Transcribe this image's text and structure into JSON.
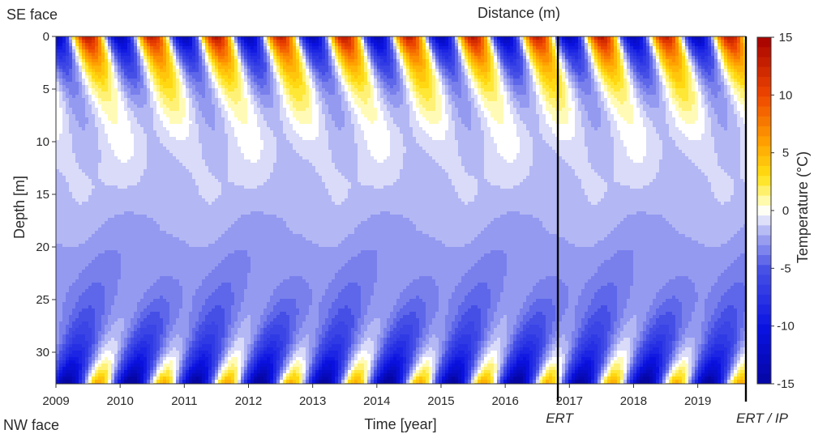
{
  "chart_data": {
    "type": "heatmap",
    "top_label": "SE face",
    "bottom_label": "NW face",
    "top_axis_title": "Distance (m)",
    "xlabel": "Time [year]",
    "ylabel": "Depth [m]",
    "colorbar_label": "Temperature (°C)",
    "x_ticks": [
      "2009",
      "2010",
      "2011",
      "2012",
      "2013",
      "2014",
      "2015",
      "2016",
      "2017",
      "2018",
      "2019"
    ],
    "xlim": [
      2009,
      2019.75
    ],
    "y_ticks": [
      0,
      5,
      10,
      15,
      20,
      25,
      30
    ],
    "ylim": [
      0,
      33
    ],
    "y_reversed": true,
    "colorbar_ticks": [
      15,
      10,
      5,
      0,
      -5,
      -10,
      -15
    ],
    "colorbar_range": [
      -15,
      15
    ],
    "annotations": [
      {
        "label": "ERT",
        "x": 2016.82
      },
      {
        "label": "ERT / IP",
        "x": 2019.75
      }
    ],
    "colors": {
      "cold": "#0a12d8",
      "mid_cold": "#8d92f0",
      "zero": "#ffffff",
      "warm": "#ffe100",
      "hot": "#ee5000",
      "hottest": "#b30000"
    }
  }
}
